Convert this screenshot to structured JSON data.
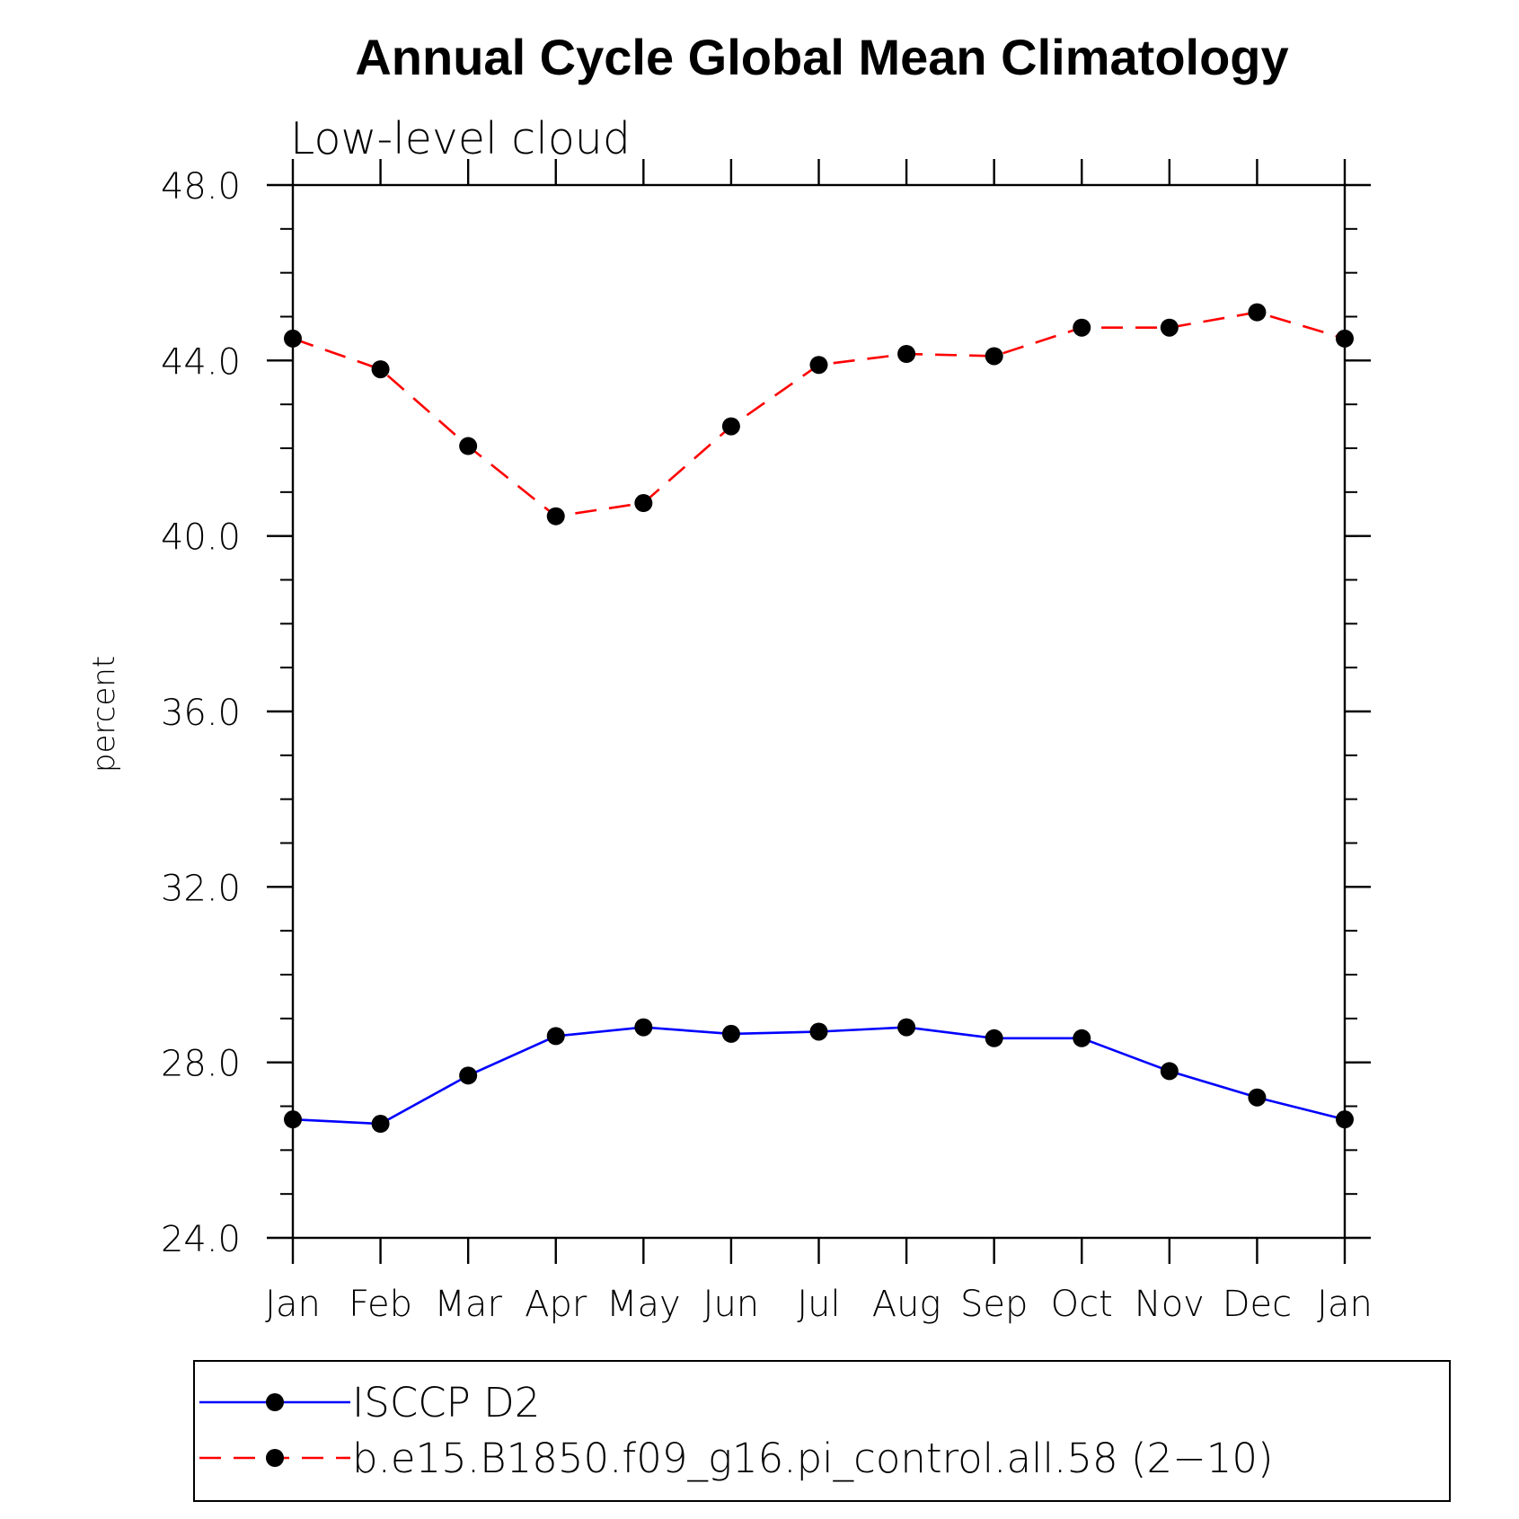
{
  "chart_data": {
    "type": "line",
    "title": "Annual Cycle Global Mean Climatology",
    "subtitle": "Low-level cloud",
    "ylabel": "percent",
    "xlabel": "",
    "ylim": [
      24,
      48
    ],
    "y_ticks": [
      "24.0",
      "28.0",
      "32.0",
      "36.0",
      "40.0",
      "44.0",
      "48.0"
    ],
    "y_tick_values": [
      24,
      28,
      32,
      36,
      40,
      44,
      48
    ],
    "y_minor_step": 1,
    "categories": [
      "Jan",
      "Feb",
      "Mar",
      "Apr",
      "May",
      "Jun",
      "Jul",
      "Aug",
      "Sep",
      "Oct",
      "Nov",
      "Dec",
      "Jan"
    ],
    "grid": false,
    "legend_position": "bottom",
    "series": [
      {
        "name": "ISCCP D2",
        "color": "#0000ff",
        "line_style": "solid",
        "marker": "filled-circle",
        "values": [
          26.7,
          26.6,
          27.7,
          28.6,
          28.8,
          28.65,
          28.7,
          28.8,
          28.55,
          28.55,
          27.8,
          27.2,
          26.7
        ]
      },
      {
        "name": "b.e15.B1850.f09_g16.pi_control.all.58 (2−10)",
        "color": "#ff0000",
        "line_style": "dashed",
        "marker": "filled-circle",
        "values": [
          44.5,
          43.8,
          42.05,
          40.45,
          40.75,
          42.5,
          43.9,
          44.15,
          44.1,
          44.75,
          44.75,
          45.1,
          44.5
        ]
      }
    ]
  }
}
